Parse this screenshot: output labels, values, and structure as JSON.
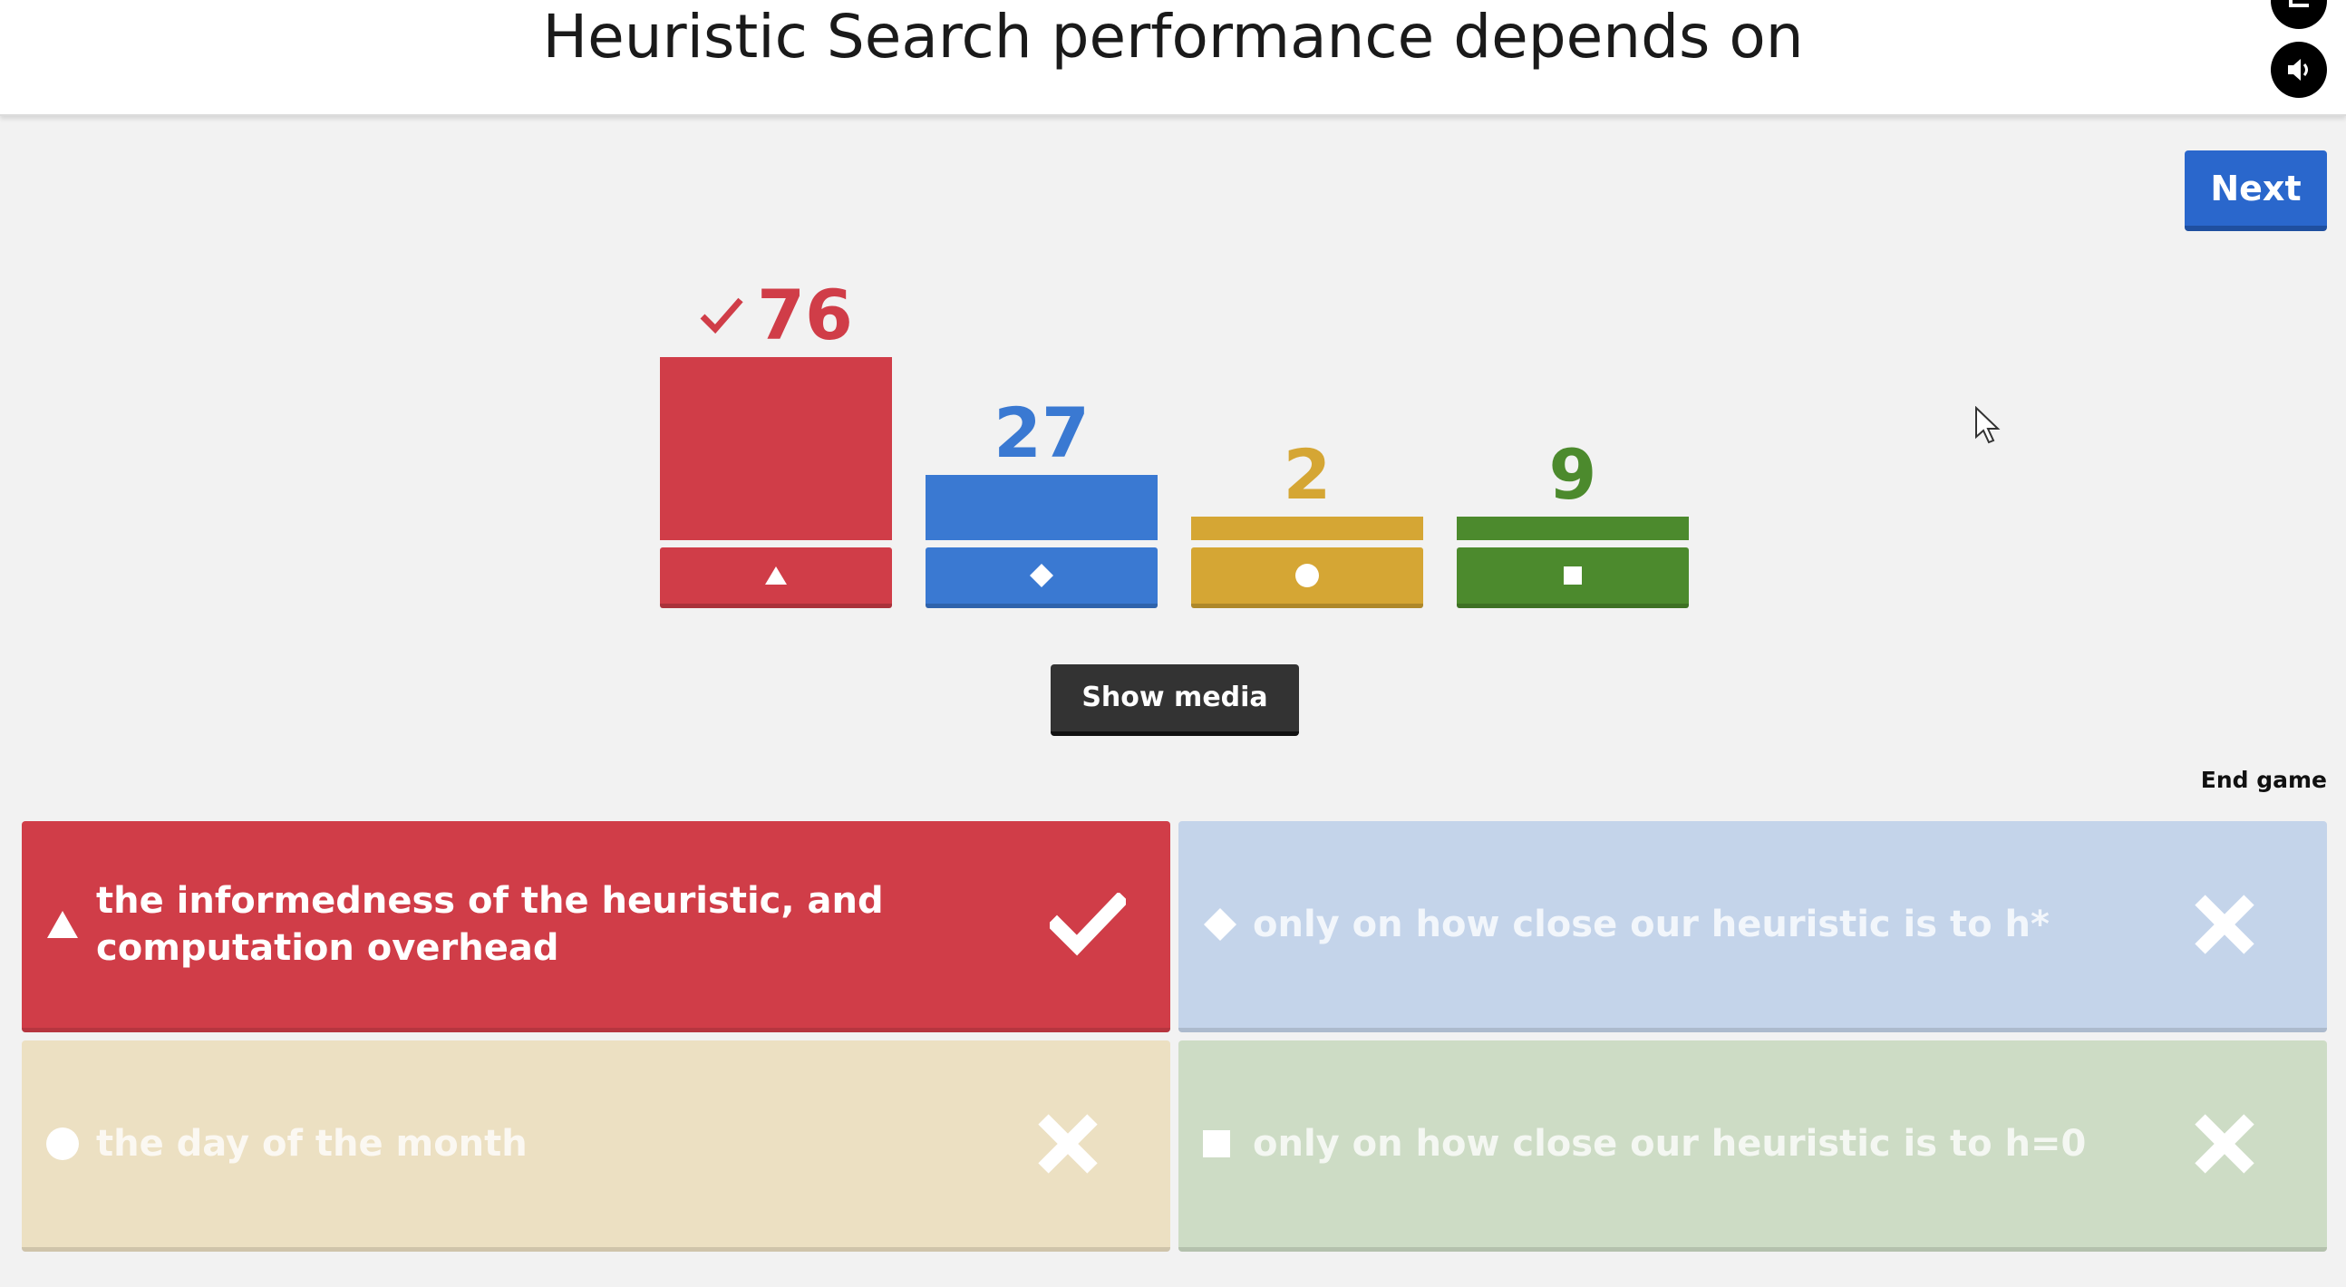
{
  "question": {
    "title": "Heuristic Search performance depends on"
  },
  "controls": {
    "next_label": "Next",
    "show_media_label": "Show media",
    "end_game_label": "End game",
    "sound_icon": "speaker-icon"
  },
  "colors": {
    "red": "#d03d48",
    "blue": "#3a79d2",
    "yellow": "#d5a634",
    "green": "#4c8a2d",
    "next_blue": "#2a67cc"
  },
  "chart_data": {
    "type": "bar",
    "categories": [
      "triangle",
      "diamond",
      "circle",
      "square"
    ],
    "values": [
      76,
      27,
      2,
      9
    ],
    "correct_index": 0
  },
  "answers": [
    {
      "shape": "triangle",
      "text": "the informedness of the heuristic, and computation overhead",
      "correct": true
    },
    {
      "shape": "diamond",
      "text": "only on how close our heuristic is to h*",
      "correct": false
    },
    {
      "shape": "circle",
      "text": "the day of the month",
      "correct": false
    },
    {
      "shape": "square",
      "text": "only on how close our heuristic is to h=0",
      "correct": false
    }
  ]
}
